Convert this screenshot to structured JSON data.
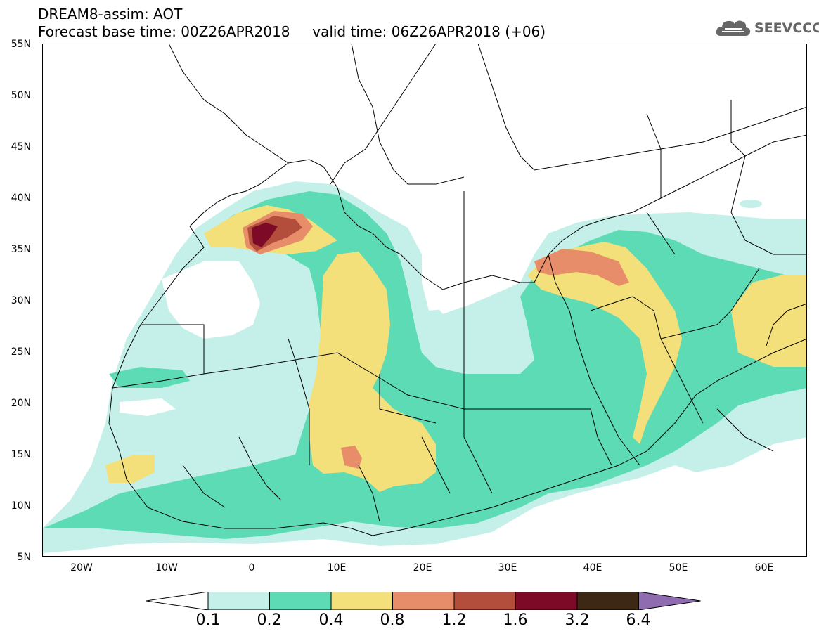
{
  "header": {
    "title_line1": "DREAM8-assim: AOT",
    "title_line2": "Forecast base time: 00Z26APR2018     valid time: 06Z26APR2018 (+06)"
  },
  "logo": {
    "text": "SEEVCCC",
    "icon": "cloud-icon"
  },
  "map": {
    "latitude_labels": [
      "55N",
      "50N",
      "45N",
      "40N",
      "35N",
      "30N",
      "25N",
      "20N",
      "15N",
      "10N",
      "5N"
    ],
    "longitude_labels": [
      "20W",
      "10W",
      "0",
      "10E",
      "20E",
      "30E",
      "40E",
      "50E",
      "60E"
    ],
    "lat_range": [
      5,
      55
    ],
    "lon_range": [
      -25,
      65
    ],
    "field": "Aerosol Optical Thickness"
  },
  "colorbar": {
    "labels": [
      "0.1",
      "0.2",
      "0.4",
      "0.8",
      "1.2",
      "1.6",
      "3.2",
      "6.4"
    ],
    "colors": [
      "#ffffff",
      "#c5f0ea",
      "#5ddbb5",
      "#f4e07b",
      "#e88d6a",
      "#b34d3c",
      "#7d0a26",
      "#3d2816",
      "#8f6bb0"
    ]
  },
  "colors": {
    "level1": "#c5f0ea",
    "level2": "#5ddbb5",
    "level3": "#f4e07b",
    "level4": "#e88d6a",
    "level5": "#b34d3c",
    "level6": "#7d0a26",
    "border": "#000000"
  }
}
